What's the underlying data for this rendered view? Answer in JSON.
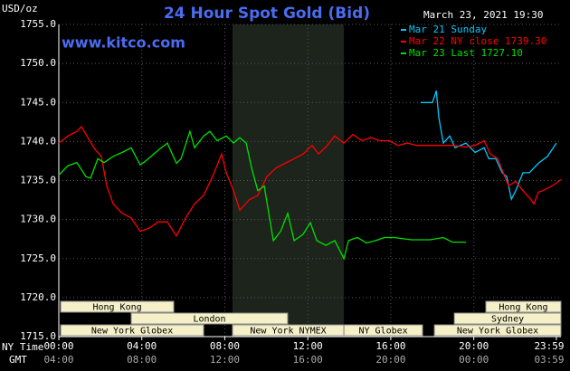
{
  "chart_data": {
    "type": "line",
    "title": "24 Hour Spot Gold (Bid)",
    "site": "www.kitco.com",
    "timestamp": "March 23, 2021 19:30",
    "y_label": "USD/oz",
    "x_label": "NY Time",
    "x2_label": "GMT",
    "xlim": [
      0,
      24.2
    ],
    "ylim": [
      1715,
      1755
    ],
    "xticks": [
      {
        "value": 0,
        "label": "00:00"
      },
      {
        "value": 4,
        "label": "04:00"
      },
      {
        "value": 8,
        "label": "08:00"
      },
      {
        "value": 12,
        "label": "12:00"
      },
      {
        "value": 16,
        "label": "16:00"
      },
      {
        "value": 20,
        "label": "20:00"
      },
      {
        "value": 23.98,
        "label": "23:59"
      }
    ],
    "gmt_labels": [
      "04:00",
      "08:00",
      "12:00",
      "16:00",
      "20:00",
      "00:00",
      "03:59"
    ],
    "yticks": [
      {
        "value": 1715,
        "label": "1715.0"
      },
      {
        "value": 1720,
        "label": "1720.0"
      },
      {
        "value": 1725,
        "label": "1725.0"
      },
      {
        "value": 1730,
        "label": "1730.0"
      },
      {
        "value": 1735,
        "label": "1735.0"
      },
      {
        "value": 1740,
        "label": "1740.0"
      },
      {
        "value": 1745,
        "label": "1745.0"
      },
      {
        "value": 1750,
        "label": "1750.0"
      },
      {
        "value": 1755,
        "label": "1755.0"
      }
    ],
    "grid": true,
    "series": [
      {
        "name": "Mar 21 Sunday",
        "color": "#00c8ff",
        "x": [
          17.44,
          18.01,
          18.19,
          18.32,
          18.53,
          18.84,
          19.1,
          19.62,
          20.06,
          20.5,
          20.72,
          21.06,
          21.37,
          21.59,
          21.81,
          22.02,
          22.37,
          22.68,
          23.11,
          23.55,
          23.98
        ],
        "values": [
          1745.0,
          1745.0,
          1746.5,
          1743.0,
          1739.8,
          1740.7,
          1739.2,
          1739.8,
          1738.6,
          1739.2,
          1737.8,
          1737.8,
          1736.0,
          1735.5,
          1732.6,
          1733.7,
          1736.0,
          1736.0,
          1737.2,
          1738.1,
          1739.8
        ]
      },
      {
        "name": "Mar 22 NY close 1739.30",
        "color": "#ff0000",
        "x": [
          0,
          0.44,
          0.87,
          1.09,
          1.31,
          1.74,
          2.05,
          2.31,
          2.62,
          3.05,
          3.49,
          3.92,
          4.36,
          4.8,
          5.23,
          5.67,
          6.11,
          6.54,
          6.98,
          7.41,
          7.85,
          8.07,
          8.42,
          8.72,
          9.16,
          9.59,
          10.03,
          10.47,
          10.9,
          11.34,
          11.77,
          12.21,
          12.52,
          12.87,
          13.3,
          13.74,
          14.17,
          14.61,
          15.04,
          15.48,
          15.92,
          16.35,
          16.79,
          17.23,
          18.1,
          18.97,
          19.62,
          20.06,
          20.5,
          20.8,
          21.15,
          21.37,
          21.68,
          22.02,
          22.37,
          22.68,
          22.9,
          23.11,
          23.33,
          23.77,
          24.2
        ],
        "values": [
          1739.8,
          1740.7,
          1741.3,
          1741.9,
          1740.9,
          1739.0,
          1738.1,
          1734.3,
          1732.0,
          1730.8,
          1730.2,
          1728.5,
          1728.9,
          1729.7,
          1729.7,
          1727.9,
          1730.2,
          1732.0,
          1733.1,
          1735.5,
          1738.4,
          1736.0,
          1733.7,
          1731.2,
          1732.5,
          1733.1,
          1735.5,
          1736.6,
          1737.2,
          1737.8,
          1738.4,
          1739.5,
          1738.4,
          1739.3,
          1740.7,
          1739.8,
          1740.9,
          1740.1,
          1740.5,
          1740.1,
          1740.1,
          1739.5,
          1739.8,
          1739.5,
          1739.5,
          1739.5,
          1739.3,
          1739.5,
          1740.1,
          1738.4,
          1737.8,
          1736.3,
          1734.3,
          1734.9,
          1733.7,
          1732.8,
          1732.0,
          1733.5,
          1733.7,
          1734.3,
          1735.1
        ]
      },
      {
        "name": "Mar 23 Last 1727.10",
        "color": "#00e000",
        "x": [
          0,
          0.44,
          0.87,
          1.31,
          1.53,
          1.88,
          2.18,
          2.62,
          3.05,
          3.49,
          3.92,
          4.14,
          4.8,
          5.23,
          5.67,
          5.89,
          6.32,
          6.54,
          6.98,
          7.28,
          7.63,
          8.07,
          8.42,
          8.72,
          9.03,
          9.29,
          9.59,
          9.9,
          10.12,
          10.34,
          10.69,
          11.03,
          11.34,
          11.77,
          12.12,
          12.43,
          12.87,
          13.3,
          13.74,
          13.96,
          14.39,
          14.83,
          15.26,
          15.7,
          16.14,
          17.01,
          17.88,
          18.53,
          18.97,
          19.62
        ],
        "values": [
          1735.7,
          1736.9,
          1737.3,
          1735.5,
          1735.3,
          1737.8,
          1737.3,
          1738.1,
          1738.6,
          1739.2,
          1737.0,
          1737.4,
          1738.9,
          1739.8,
          1737.2,
          1737.8,
          1741.3,
          1739.2,
          1740.7,
          1741.3,
          1740.1,
          1740.7,
          1739.8,
          1740.5,
          1739.8,
          1736.6,
          1733.7,
          1734.3,
          1730.8,
          1727.3,
          1728.5,
          1730.8,
          1727.3,
          1728.1,
          1729.6,
          1727.3,
          1726.7,
          1727.3,
          1725.0,
          1727.3,
          1727.7,
          1727.0,
          1727.3,
          1727.7,
          1727.7,
          1727.4,
          1727.4,
          1727.7,
          1727.1,
          1727.1
        ]
      }
    ],
    "sessions": [
      {
        "label": "Hong Kong",
        "start": 0.09,
        "end": 5.54
      },
      {
        "label": "London",
        "start": 3.49,
        "end": 11.03
      },
      {
        "label": "New York Globex",
        "start": 0.09,
        "end": 6.98
      },
      {
        "label": "New York NYMEX",
        "start": 8.37,
        "end": 13.74
      },
      {
        "label": "NY Globex",
        "start": 13.74,
        "end": 17.53
      },
      {
        "label": "Hong Kong",
        "start": 20.58,
        "end": 24.2
      },
      {
        "label": "Sydney",
        "start": 19.06,
        "end": 24.2
      },
      {
        "label": "New York Globex",
        "start": 18.1,
        "end": 24.2
      }
    ]
  }
}
